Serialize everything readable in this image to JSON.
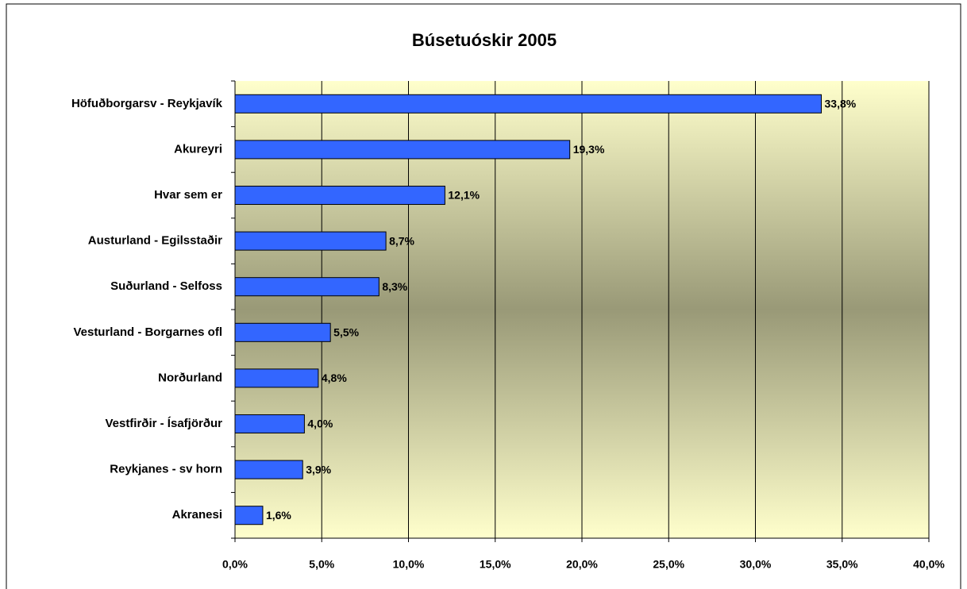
{
  "chart_data": {
    "type": "bar",
    "orientation": "horizontal",
    "title": "Búsetuóskir 2005",
    "categories": [
      "Höfuðborgarsv - Reykjavík",
      "Akureyri",
      "Hvar sem er",
      "Austurland - Egilsstaðir",
      "Suðurland - Selfoss",
      "Vesturland - Borgarnes ofl",
      "Norðurland",
      "Vestfirðir - Ísafjörður",
      "Reykjanes - sv horn",
      "Akranesi"
    ],
    "values": [
      33.8,
      19.3,
      12.1,
      8.7,
      8.3,
      5.5,
      4.8,
      4.0,
      3.9,
      1.6
    ],
    "value_labels": [
      "33,8%",
      "19,3%",
      "12,1%",
      "8,7%",
      "8,3%",
      "5,5%",
      "4,8%",
      "4,0%",
      "3,9%",
      "1,6%"
    ],
    "color": "#3366ff",
    "xlim": [
      0,
      40
    ],
    "xticks": [
      {
        "value": 0,
        "label": "0,0%"
      },
      {
        "value": 5,
        "label": "5,0%"
      },
      {
        "value": 10,
        "label": "10,0%"
      },
      {
        "value": 15,
        "label": "15,0%"
      },
      {
        "value": 20,
        "label": "20,0%"
      },
      {
        "value": 25,
        "label": "25,0%"
      },
      {
        "value": 30,
        "label": "30,0%"
      },
      {
        "value": 35,
        "label": "35,0%"
      },
      {
        "value": 40,
        "label": "40,0%"
      }
    ],
    "grid": true
  }
}
